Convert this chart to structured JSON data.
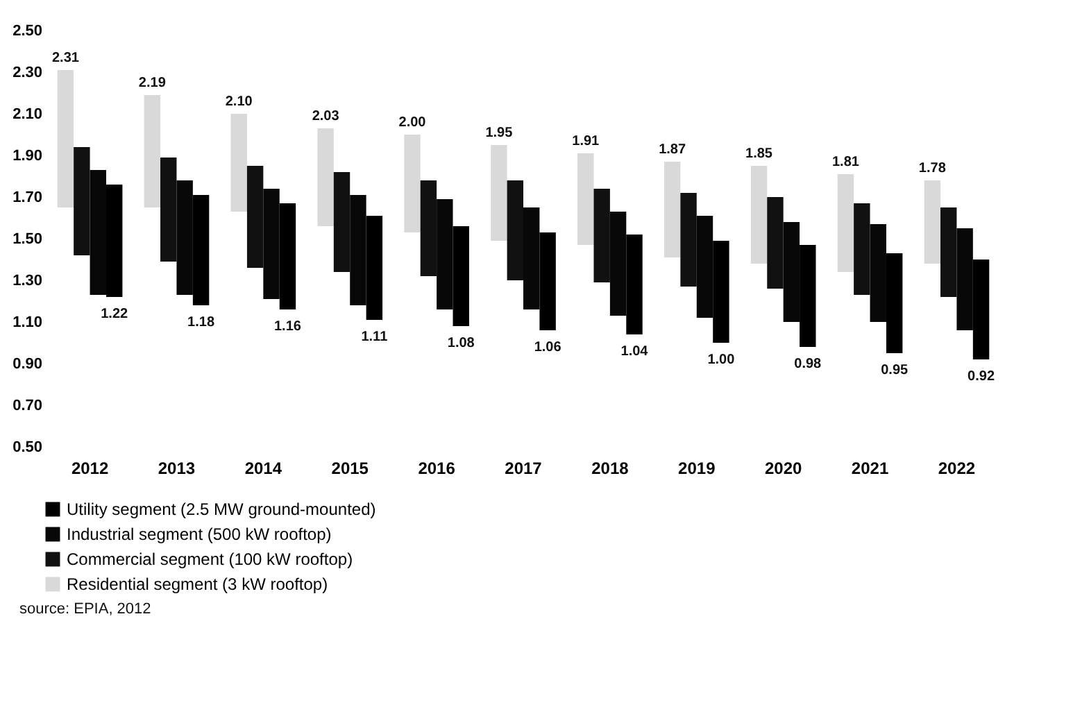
{
  "chart_data": {
    "type": "bar",
    "categories": [
      "2012",
      "2013",
      "2014",
      "2015",
      "2016",
      "2017",
      "2018",
      "2019",
      "2020",
      "2021",
      "2022"
    ],
    "series": [
      {
        "name": "Residential segment (3 kW rooftop)",
        "color": "#d9d9d9",
        "base": [
          1.65,
          1.65,
          1.63,
          1.56,
          1.53,
          1.49,
          1.47,
          1.41,
          1.38,
          1.34,
          1.38
        ],
        "values": [
          0.66,
          0.54,
          0.47,
          0.47,
          0.47,
          0.46,
          0.44,
          0.46,
          0.47,
          0.47,
          0.4
        ],
        "value_labels": [
          "2.31",
          "2.19",
          "2.10",
          "2.03",
          "2.00",
          "1.95",
          "1.91",
          "1.87",
          "1.85",
          "1.81",
          "1.78"
        ]
      },
      {
        "name": "Commercial segment (100 kW rooftop)",
        "color": "#111111",
        "base": [
          1.42,
          1.39,
          1.36,
          1.34,
          1.32,
          1.3,
          1.29,
          1.27,
          1.26,
          1.23,
          1.22
        ],
        "values": [
          0.52,
          0.5,
          0.49,
          0.48,
          0.46,
          0.48,
          0.45,
          0.45,
          0.44,
          0.44,
          0.43
        ]
      },
      {
        "name": "Industrial segment (500 kW rooftop)",
        "color": "#080808",
        "base": [
          1.23,
          1.23,
          1.21,
          1.18,
          1.16,
          1.16,
          1.13,
          1.12,
          1.1,
          1.1,
          1.06
        ],
        "values": [
          0.6,
          0.55,
          0.53,
          0.53,
          0.53,
          0.49,
          0.5,
          0.49,
          0.48,
          0.47,
          0.49
        ]
      },
      {
        "name": "Utility segment (2.5 MW ground-mounted)",
        "color": "#000000",
        "base": [
          1.76,
          1.71,
          1.67,
          1.61,
          1.56,
          1.53,
          1.52,
          1.49,
          1.47,
          1.43,
          1.4
        ],
        "values": [
          -0.54,
          -0.53,
          -0.51,
          -0.5,
          -0.48,
          -0.47,
          -0.48,
          -0.49,
          -0.49,
          -0.48,
          -0.48
        ],
        "value_labels": [
          "1.22",
          "1.18",
          "1.16",
          "1.11",
          "1.08",
          "1.06",
          "1.04",
          "1.00",
          "0.98",
          "0.95",
          "0.92"
        ]
      }
    ],
    "ylim": [
      0.5,
      2.5
    ],
    "yticks": [
      {
        "value": 0.5,
        "label": "0.50"
      },
      {
        "value": 0.7,
        "label": "0.70"
      },
      {
        "value": 0.9,
        "label": "0.90"
      },
      {
        "value": 1.1,
        "label": "1.10"
      },
      {
        "value": 1.3,
        "label": "1.30"
      },
      {
        "value": 1.5,
        "label": "1.50"
      },
      {
        "value": 1.7,
        "label": "1.70"
      },
      {
        "value": 1.9,
        "label": "1.90"
      },
      {
        "value": 2.1,
        "label": "2.10"
      },
      {
        "value": 2.3,
        "label": "2.30"
      },
      {
        "value": 2.5,
        "label": "2.50"
      }
    ],
    "grid": false,
    "legend": "bottom",
    "annotations": [
      "source: EPIA, 2012"
    ]
  }
}
